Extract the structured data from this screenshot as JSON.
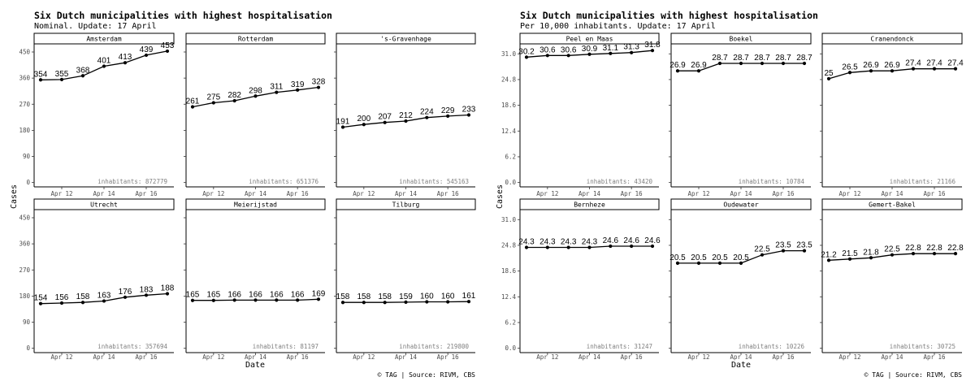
{
  "chart_data": [
    {
      "type": "line",
      "title": "Six Dutch municipalities with highest hospitalisation",
      "subtitle": "Nominal. Update: 17 April",
      "xlabel": "Date",
      "ylabel": "Cases",
      "caption": "© TAG | Source: RIVM, CBS",
      "x": [
        "2020-04-11",
        "2020-04-12",
        "2020-04-13",
        "2020-04-14",
        "2020-04-15",
        "2020-04-16",
        "2020-04-17"
      ],
      "x_ticks": [
        {
          "date": "2020-04-12",
          "label": "Apr 12"
        },
        {
          "date": "2020-04-14",
          "label": "Apr 14"
        },
        {
          "date": "2020-04-16",
          "label": "Apr 16"
        }
      ],
      "y_ticks": [
        0,
        90,
        180,
        270,
        360,
        450
      ],
      "y_tick_labels": [
        "0",
        "90",
        "180",
        "270",
        "360",
        "450"
      ],
      "ylim": [
        -15,
        478
      ],
      "grid": false,
      "inhabitants_prefix": "inhabitants:",
      "series": [
        {
          "name": "Amsterdam",
          "inhabitants": "872779",
          "values": [
            354,
            355,
            368,
            401,
            413,
            439,
            453
          ],
          "labels": [
            "354",
            "355",
            "368",
            "401",
            "413",
            "439",
            "453"
          ]
        },
        {
          "name": "Rotterdam",
          "inhabitants": "651376",
          "values": [
            261,
            275,
            282,
            298,
            311,
            319,
            328
          ],
          "labels": [
            "261",
            "275",
            "282",
            "298",
            "311",
            "319",
            "328"
          ]
        },
        {
          "name": "'s-Gravenhage",
          "inhabitants": "545163",
          "values": [
            191,
            200,
            207,
            212,
            224,
            229,
            233
          ],
          "labels": [
            "191",
            "200",
            "207",
            "212",
            "224",
            "229",
            "233"
          ]
        },
        {
          "name": "Utrecht",
          "inhabitants": "357694",
          "values": [
            154,
            156,
            158,
            163,
            176,
            183,
            188
          ],
          "labels": [
            "154",
            "156",
            "158",
            "163",
            "176",
            "183",
            "188"
          ]
        },
        {
          "name": "Meierijstad",
          "inhabitants": "81197",
          "values": [
            165,
            165,
            166,
            166,
            166,
            166,
            169
          ],
          "labels": [
            "165",
            "165",
            "166",
            "166",
            "166",
            "166",
            "169"
          ]
        },
        {
          "name": "Tilburg",
          "inhabitants": "219800",
          "values": [
            158,
            158,
            158,
            159,
            160,
            160,
            161
          ],
          "labels": [
            "158",
            "158",
            "158",
            "159",
            "160",
            "160",
            "161"
          ]
        }
      ]
    },
    {
      "type": "line",
      "title": "Six Dutch municipalities with highest hospitalisation",
      "subtitle": "Per 10,000 inhabitants. Update: 17 April",
      "xlabel": "Date",
      "ylabel": "Cases",
      "caption": "© TAG | Source: RIVM, CBS",
      "x": [
        "2020-04-11",
        "2020-04-12",
        "2020-04-13",
        "2020-04-14",
        "2020-04-15",
        "2020-04-16",
        "2020-04-17"
      ],
      "x_ticks": [
        {
          "date": "2020-04-12",
          "label": "Apr 12"
        },
        {
          "date": "2020-04-14",
          "label": "Apr 14"
        },
        {
          "date": "2020-04-16",
          "label": "Apr 16"
        }
      ],
      "y_ticks": [
        0,
        6.2,
        12.4,
        18.6,
        24.8,
        31.0
      ],
      "y_tick_labels": [
        "0.0",
        "6.2",
        "12.4",
        "18.6",
        "24.8",
        "31.0"
      ],
      "ylim": [
        -1.05,
        33.4
      ],
      "grid": false,
      "inhabitants_prefix": "inhabitants:",
      "series": [
        {
          "name": "Peel en Maas",
          "inhabitants": "43420",
          "values": [
            30.2,
            30.6,
            30.6,
            30.9,
            31.1,
            31.3,
            31.8
          ],
          "labels": [
            "30.2",
            "30.6",
            "30.6",
            "30.9",
            "31.1",
            "31.3",
            "31.8"
          ]
        },
        {
          "name": "Boekel",
          "inhabitants": "10784",
          "values": [
            26.9,
            26.9,
            28.7,
            28.7,
            28.7,
            28.7,
            28.7
          ],
          "labels": [
            "26.9",
            "26.9",
            "28.7",
            "28.7",
            "28.7",
            "28.7",
            "28.7"
          ]
        },
        {
          "name": "Cranendonck",
          "inhabitants": "21166",
          "values": [
            25,
            26.5,
            26.9,
            26.9,
            27.4,
            27.4,
            27.4
          ],
          "labels": [
            "25",
            "26.5",
            "26.9",
            "26.9",
            "27.4",
            "27.4",
            "27.4"
          ]
        },
        {
          "name": "Bernheze",
          "inhabitants": "31247",
          "values": [
            24.3,
            24.3,
            24.3,
            24.3,
            24.6,
            24.6,
            24.6
          ],
          "labels": [
            "24.3",
            "24.3",
            "24.3",
            "24.3",
            "24.6",
            "24.6",
            "24.6"
          ]
        },
        {
          "name": "Oudewater",
          "inhabitants": "10226",
          "values": [
            20.5,
            20.5,
            20.5,
            20.5,
            22.5,
            23.5,
            23.5
          ],
          "labels": [
            "20.5",
            "20.5",
            "20.5",
            "20.5",
            "22.5",
            "23.5",
            "23.5"
          ]
        },
        {
          "name": "Gemert-Bakel",
          "inhabitants": "30725",
          "values": [
            21.2,
            21.5,
            21.8,
            22.5,
            22.8,
            22.8,
            22.8
          ],
          "labels": [
            "21.2",
            "21.5",
            "21.8",
            "22.5",
            "22.8",
            "22.8",
            "22.8"
          ]
        }
      ]
    }
  ]
}
